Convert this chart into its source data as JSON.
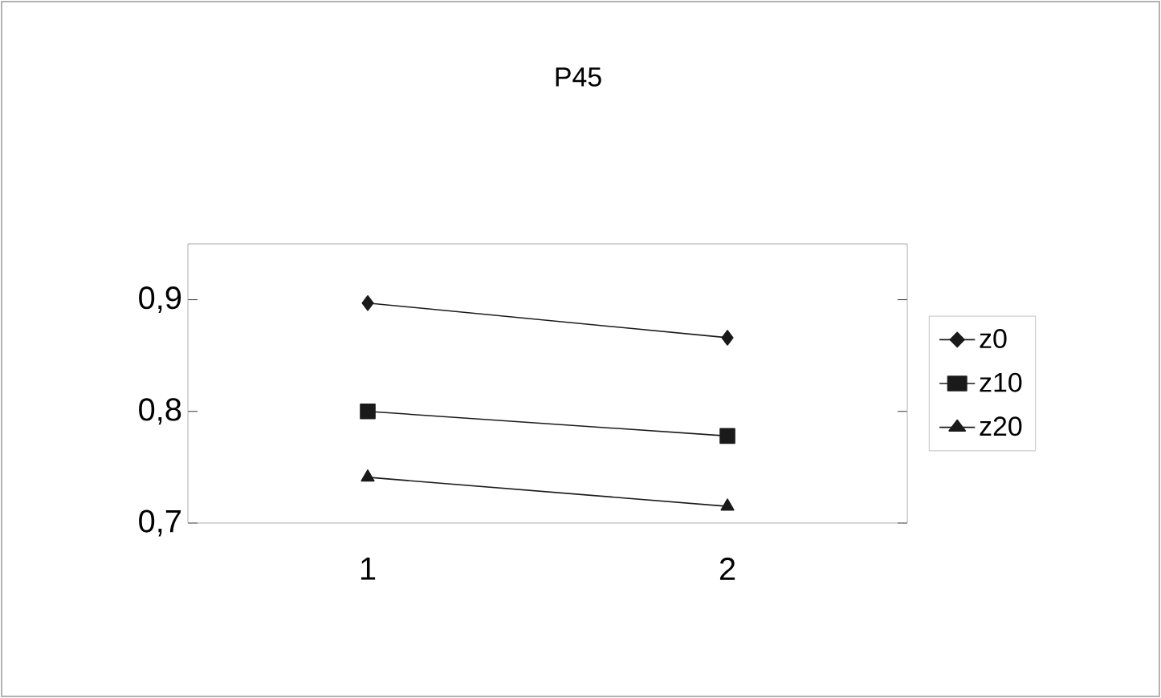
{
  "chart_data": {
    "type": "line",
    "title": "P45",
    "categories": [
      "1",
      "2"
    ],
    "series": [
      {
        "name": "z0",
        "color": "#1a1a1a",
        "marker": "diamond",
        "values": [
          0.897,
          0.866
        ]
      },
      {
        "name": "z10",
        "color": "#1a1a1a",
        "marker": "square",
        "values": [
          0.8,
          0.778
        ]
      },
      {
        "name": "z20",
        "color": "#1a1a1a",
        "marker": "triangle",
        "values": [
          0.741,
          0.715
        ]
      }
    ],
    "ylim": [
      0.7,
      0.95
    ],
    "yticks": [
      {
        "value": 0.7,
        "label": "0,7"
      },
      {
        "value": 0.8,
        "label": "0,8"
      },
      {
        "value": 0.9,
        "label": "0,9"
      }
    ],
    "grid": false,
    "legend": "right",
    "line_style": "solid"
  }
}
